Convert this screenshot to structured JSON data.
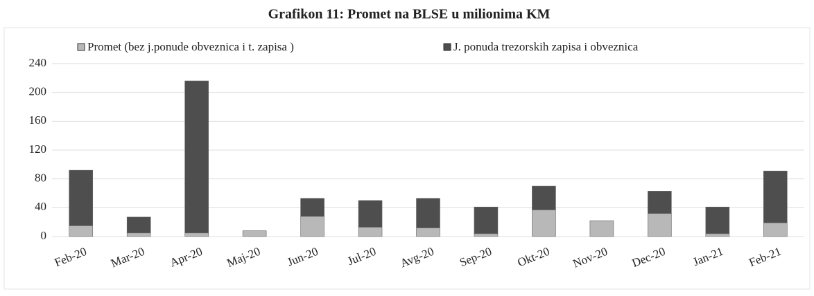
{
  "chart_data": {
    "type": "stacked_bar",
    "title": "Grafikon 11: Promet na BLSE u milionima KM",
    "categories": [
      "Feb-20",
      "Mar-20",
      "Apr-20",
      "Maj-20",
      "Jun-20",
      "Jul-20",
      "Avg-20",
      "Sep-20",
      "Okt-20",
      "Nov-20",
      "Dec-20",
      "Jan-21",
      "Feb-21"
    ],
    "series": [
      {
        "name": "Promet (bez j.ponude obveznica i t. zapisa )",
        "color": "#b8b8b8",
        "values": [
          15,
          5,
          5,
          8,
          28,
          13,
          12,
          4,
          37,
          22,
          32,
          4,
          19
        ]
      },
      {
        "name": "J. ponuda  trezorskih zapisa i obveznica",
        "color": "#4e4e4e",
        "values": [
          77,
          22,
          211,
          0,
          25,
          37,
          41,
          37,
          33,
          0,
          31,
          37,
          72
        ]
      }
    ],
    "ylim": [
      0,
      240
    ],
    "yticks": [
      0,
      40,
      80,
      120,
      160,
      200,
      240
    ],
    "grid": true,
    "legend": "top"
  }
}
